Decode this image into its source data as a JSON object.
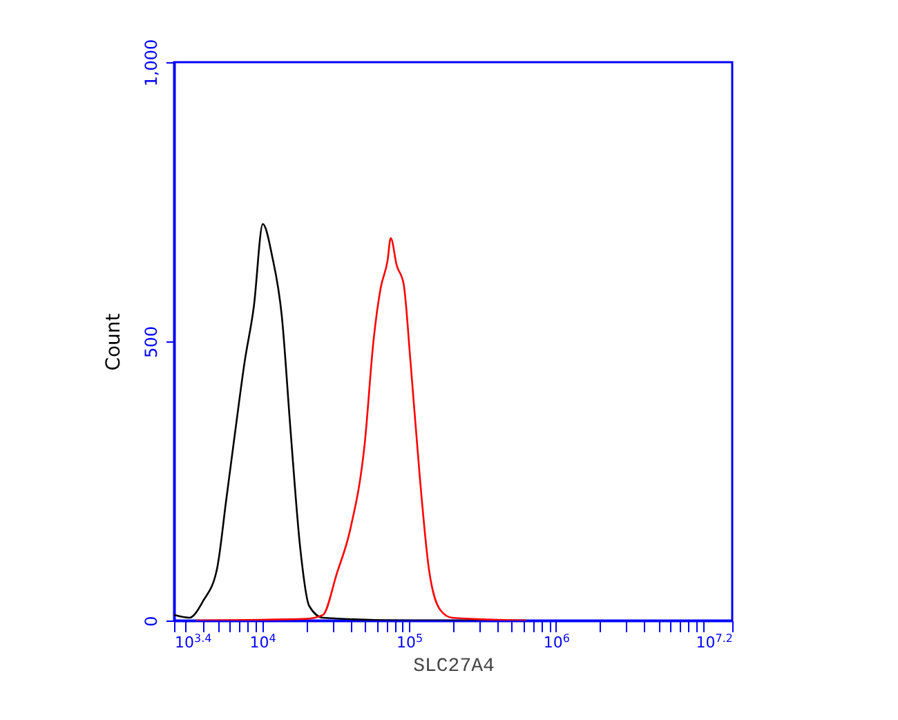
{
  "chart_data": {
    "type": "line",
    "xlabel": "SLC27A4",
    "ylabel": "Count",
    "log": "x",
    "grid": false,
    "xlim": [
      2512,
      15850000
    ],
    "ylim": [
      0,
      1000
    ],
    "xticks": [
      {
        "value": 2512,
        "label": "10$^{3.4}$"
      },
      {
        "value": 3000,
        "label": null
      },
      {
        "value": 4000,
        "label": null
      },
      {
        "value": 5000,
        "label": null
      },
      {
        "value": 6000,
        "label": null
      },
      {
        "value": 7000,
        "label": null
      },
      {
        "value": 8000,
        "label": null
      },
      {
        "value": 9000,
        "label": null
      },
      {
        "value": 10000,
        "label": "10$^{4}$"
      },
      {
        "value": 20000,
        "label": null
      },
      {
        "value": 30000,
        "label": null
      },
      {
        "value": 40000,
        "label": null
      },
      {
        "value": 50000,
        "label": null
      },
      {
        "value": 60000,
        "label": null
      },
      {
        "value": 70000,
        "label": null
      },
      {
        "value": 80000,
        "label": null
      },
      {
        "value": 90000,
        "label": null
      },
      {
        "value": 100000,
        "label": "10$^{5}$"
      },
      {
        "value": 200000,
        "label": null
      },
      {
        "value": 300000,
        "label": null
      },
      {
        "value": 400000,
        "label": null
      },
      {
        "value": 500000,
        "label": null
      },
      {
        "value": 600000,
        "label": null
      },
      {
        "value": 700000,
        "label": null
      },
      {
        "value": 800000,
        "label": null
      },
      {
        "value": 900000,
        "label": null
      },
      {
        "value": 1000000,
        "label": "10$^{6}$"
      },
      {
        "value": 2000000,
        "label": null
      },
      {
        "value": 3000000,
        "label": null
      },
      {
        "value": 4000000,
        "label": null
      },
      {
        "value": 5000000,
        "label": null
      },
      {
        "value": 6000000,
        "label": null
      },
      {
        "value": 7000000,
        "label": null
      },
      {
        "value": 8000000,
        "label": null
      },
      {
        "value": 9000000,
        "label": null
      },
      {
        "value": 10000000,
        "label": null
      },
      {
        "value": 15850000,
        "label": "10$^{7.2}$"
      }
    ],
    "yticks": [
      0,
      500,
      {
        "value": 1000,
        "label": "1,000"
      }
    ],
    "series": [
      {
        "color": "#000000",
        "x": [
          2512,
          3190,
          3960,
          4920,
          5690,
          6560,
          7590,
          8770,
          10100,
          11700,
          13600,
          15600,
          18100,
          20900,
          25900,
          100000,
          631000
        ],
        "values": [
          10,
          5,
          35,
          92,
          216,
          340,
          463,
          562,
          710,
          652,
          545,
          340,
          133,
          26,
          5,
          0,
          0
        ]
      },
      {
        "color": "#ff0000",
        "x": [
          3548,
          20000,
          25900,
          32200,
          40000,
          49800,
          57400,
          64000,
          71300,
          75000,
          82400,
          91800,
          102300,
          118300,
          136500,
          164100,
          196300,
          631000
        ],
        "values": [
          0,
          3,
          10,
          84,
          166,
          315,
          504,
          595,
          644,
          685,
          636,
          603,
          463,
          257,
          92,
          18,
          5,
          0
        ]
      }
    ]
  }
}
